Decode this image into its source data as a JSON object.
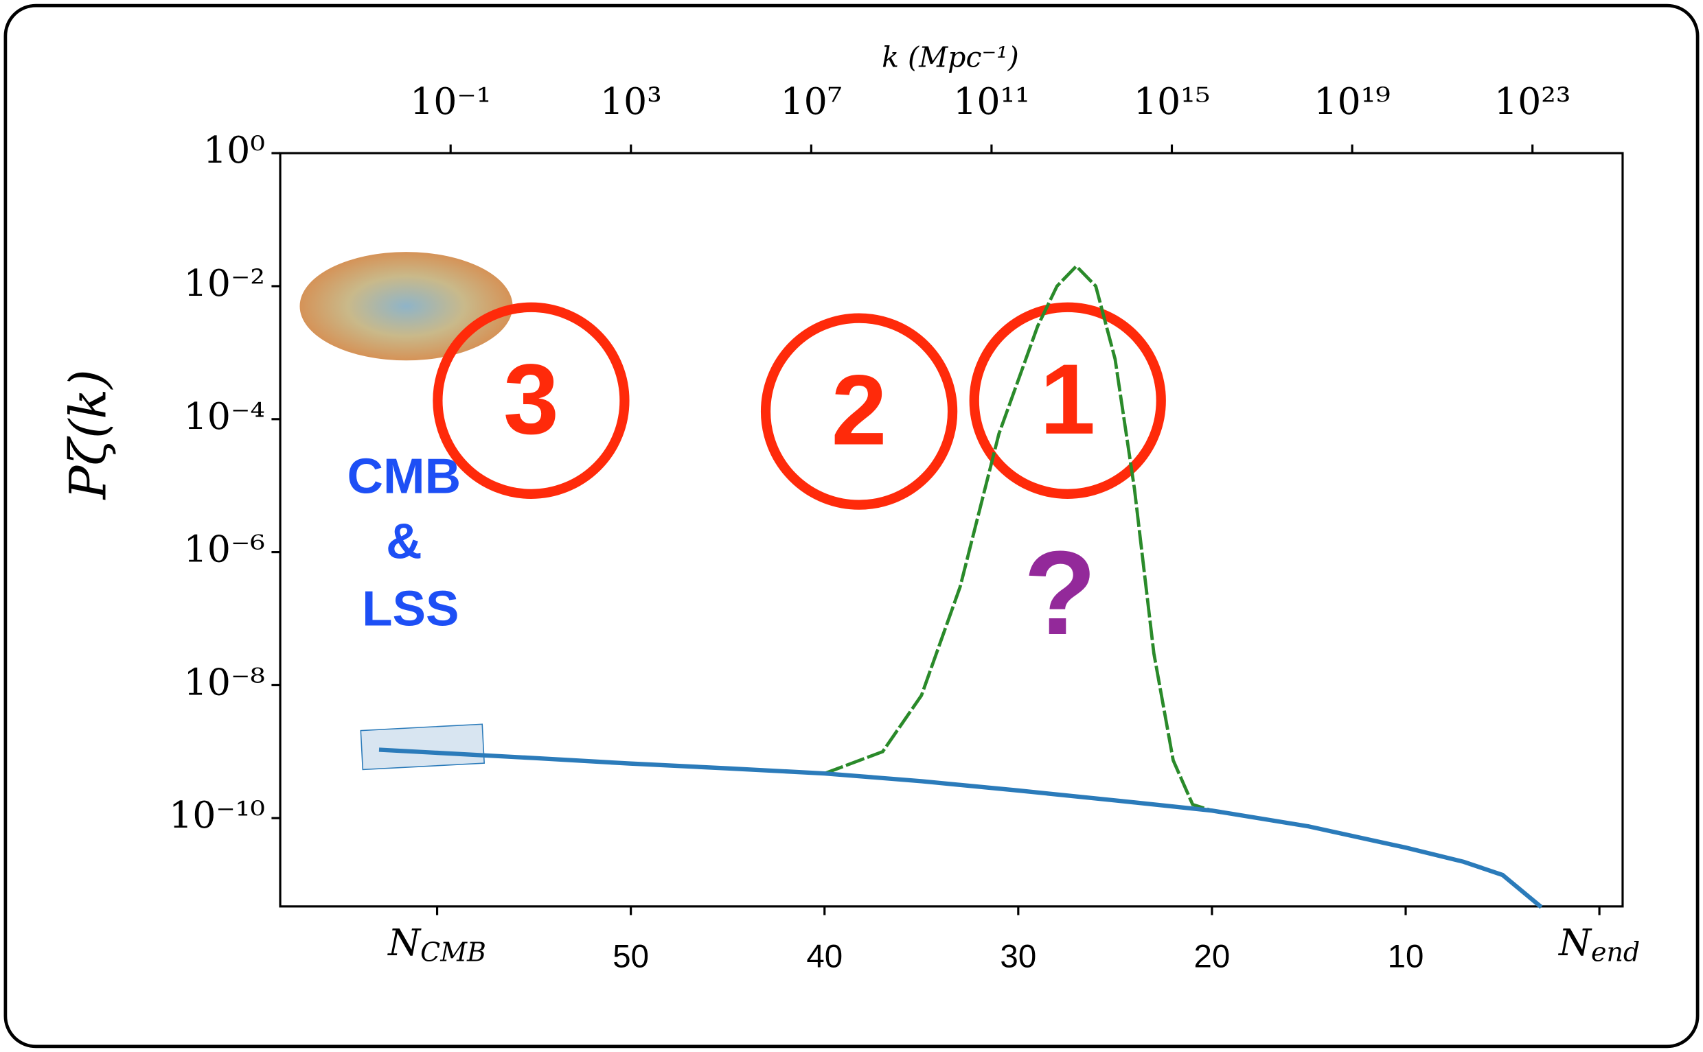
{
  "chart_data": {
    "type": "line",
    "xlabel_top": "k (Mpc⁻¹)",
    "ylabel": "Pζ(k)",
    "log_y": true,
    "log_x2": true,
    "xlim": [
      68.1,
      -1.2
    ],
    "xticks": [
      {
        "value": 60,
        "label": "NCMB"
      },
      50,
      40,
      30,
      20,
      10,
      {
        "value": 0,
        "label": "Nend"
      }
    ],
    "x2lim": [
      1.66e-05,
      1e+25
    ],
    "x2ticks": [
      {
        "value": 0.1,
        "label": "10⁻¹"
      },
      {
        "value": 1000,
        "label": "10³"
      },
      {
        "value": 10000000.0,
        "label": "10⁷"
      },
      {
        "value": 100000000000.0,
        "label": "10¹¹"
      },
      {
        "value": 1000000000000000.0,
        "label": "10¹⁵"
      },
      {
        "value": 1e+19,
        "label": "10¹⁹"
      },
      {
        "value": 1e+23,
        "label": "10²³"
      }
    ],
    "ylim": [
      4.7e-12,
      1
    ],
    "yticks": [
      {
        "value": 1,
        "label": "10⁰"
      },
      {
        "value": 0.01,
        "label": "10⁻²"
      },
      {
        "value": 0.0001,
        "label": "10⁻⁴"
      },
      {
        "value": 1e-06,
        "label": "10⁻⁶"
      },
      {
        "value": 1e-08,
        "label": "10⁻⁸"
      },
      {
        "value": 1e-10,
        "label": "10⁻¹⁰"
      }
    ],
    "series": [
      {
        "color": "#2b7bba",
        "x": [
          63,
          55,
          50,
          45,
          40,
          35,
          30,
          25,
          20,
          15,
          10,
          7,
          5,
          3
        ],
        "values": [
          1.07e-09,
          8e-10,
          6.6e-10,
          5.6e-10,
          4.7e-10,
          3.6e-10,
          2.6e-10,
          1.85e-10,
          1.3e-10,
          7.5e-11,
          3.6e-11,
          2.2e-11,
          1.4e-11,
          4.6e-12
        ]
      },
      {
        "color": "#2a8a2a",
        "x": [
          40,
          37,
          35,
          33,
          31,
          29,
          28,
          27,
          26,
          25,
          24,
          23,
          22,
          21,
          20,
          15,
          10,
          7,
          5,
          3
        ],
        "values": [
          4.7e-10,
          1e-09,
          7e-09,
          3e-07,
          6e-05,
          0.0025,
          0.01,
          0.02,
          0.01,
          0.0008,
          9e-06,
          3e-08,
          7.4e-10,
          1.6e-10,
          1.3e-10,
          7.5e-11,
          3.6e-11,
          2.2e-11,
          1.4e-11,
          4.6e-12
        ]
      }
    ],
    "annotations": [
      "3",
      "2",
      "1",
      "?",
      "CMB",
      "&",
      "LSS"
    ]
  }
}
